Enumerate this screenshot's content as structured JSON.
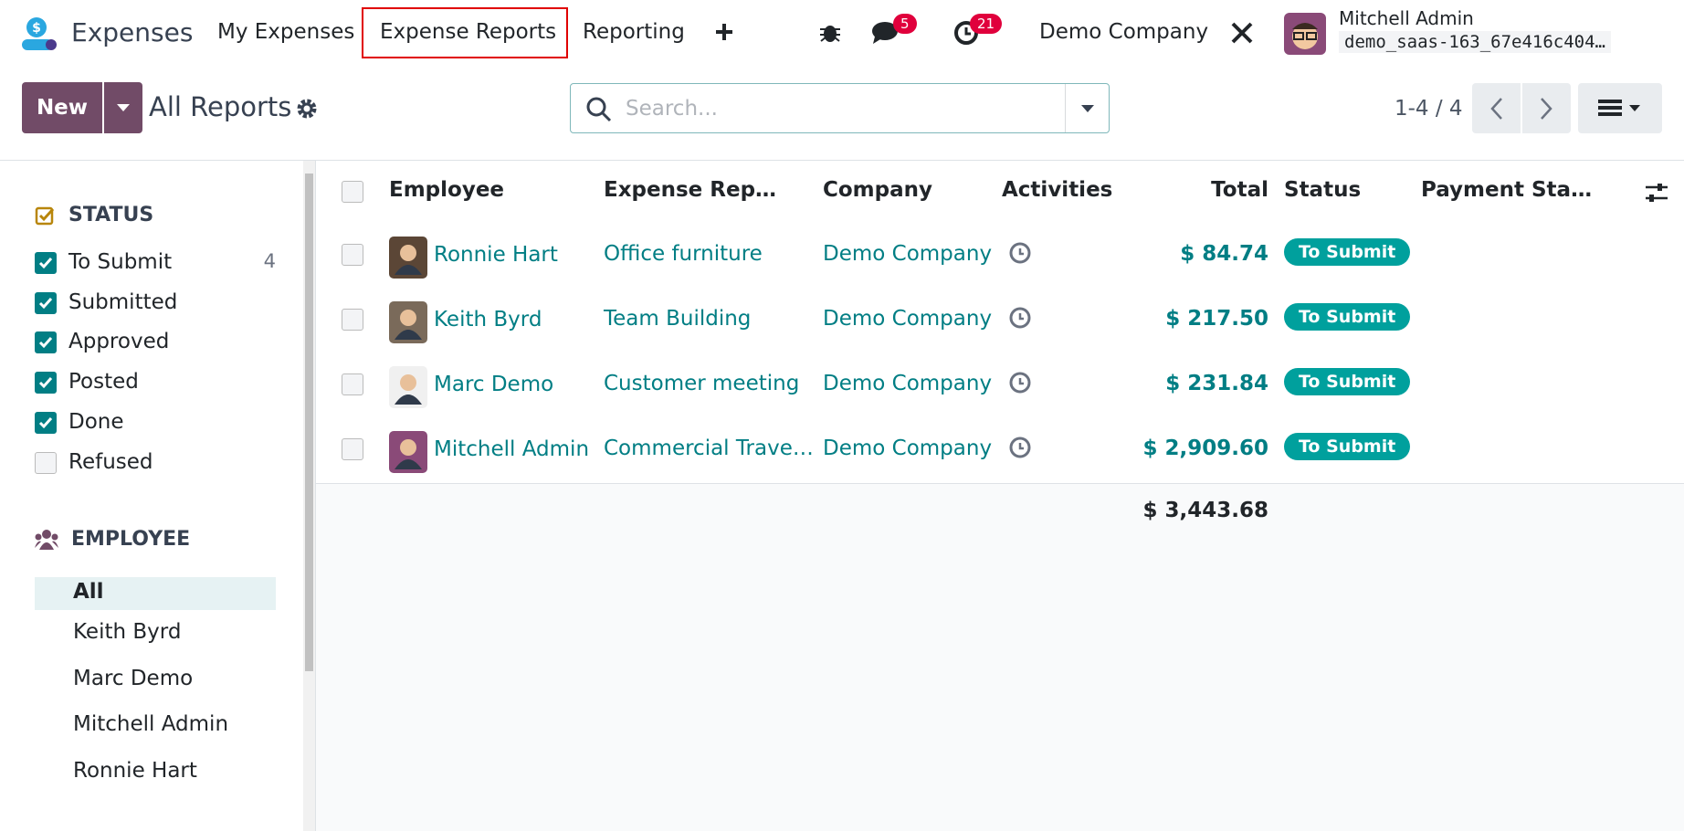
{
  "navbar": {
    "app": "Expenses",
    "menu": [
      "My Expenses",
      "Expense Reports",
      "Reporting"
    ],
    "messages_count": 5,
    "activities_count": 21,
    "company": "Demo Company",
    "user": "Mitchell Admin",
    "database": "demo_saas-163_67e416c404…"
  },
  "control_panel": {
    "new_button": "New",
    "breadcrumb": "All Reports",
    "search_placeholder": "Search...",
    "pager": "1-4 / 4"
  },
  "sidebar": {
    "status": {
      "title": "STATUS",
      "items": [
        {
          "label": "To Submit",
          "count": 4,
          "checked": true
        },
        {
          "label": "Submitted",
          "checked": true
        },
        {
          "label": "Approved",
          "checked": true
        },
        {
          "label": "Posted",
          "checked": true
        },
        {
          "label": "Done",
          "checked": true
        },
        {
          "label": "Refused",
          "checked": false
        }
      ]
    },
    "employee": {
      "title": "EMPLOYEE",
      "items": [
        "All",
        "Keith Byrd",
        "Marc Demo",
        "Mitchell Admin",
        "Ronnie Hart"
      ]
    }
  },
  "table": {
    "columns": [
      "Employee",
      "Expense Rep…",
      "Company",
      "Activities",
      "Total",
      "Status",
      "Payment Sta…"
    ],
    "rows": [
      [
        "Ronnie Hart",
        "Office furniture",
        "Demo Company",
        "$ 84.74",
        "To Submit"
      ],
      [
        "Keith Byrd",
        "Team Building",
        "Demo Company",
        "$ 217.50",
        "To Submit"
      ],
      [
        "Marc Demo",
        "Customer meeting",
        "Demo Company",
        "$ 231.84",
        "To Submit"
      ],
      [
        "Mitchell Admin",
        "Commercial Trave…",
        "Demo Company",
        "$ 2,909.60",
        "To Submit"
      ]
    ],
    "footer_total": "$ 3,443.68"
  }
}
